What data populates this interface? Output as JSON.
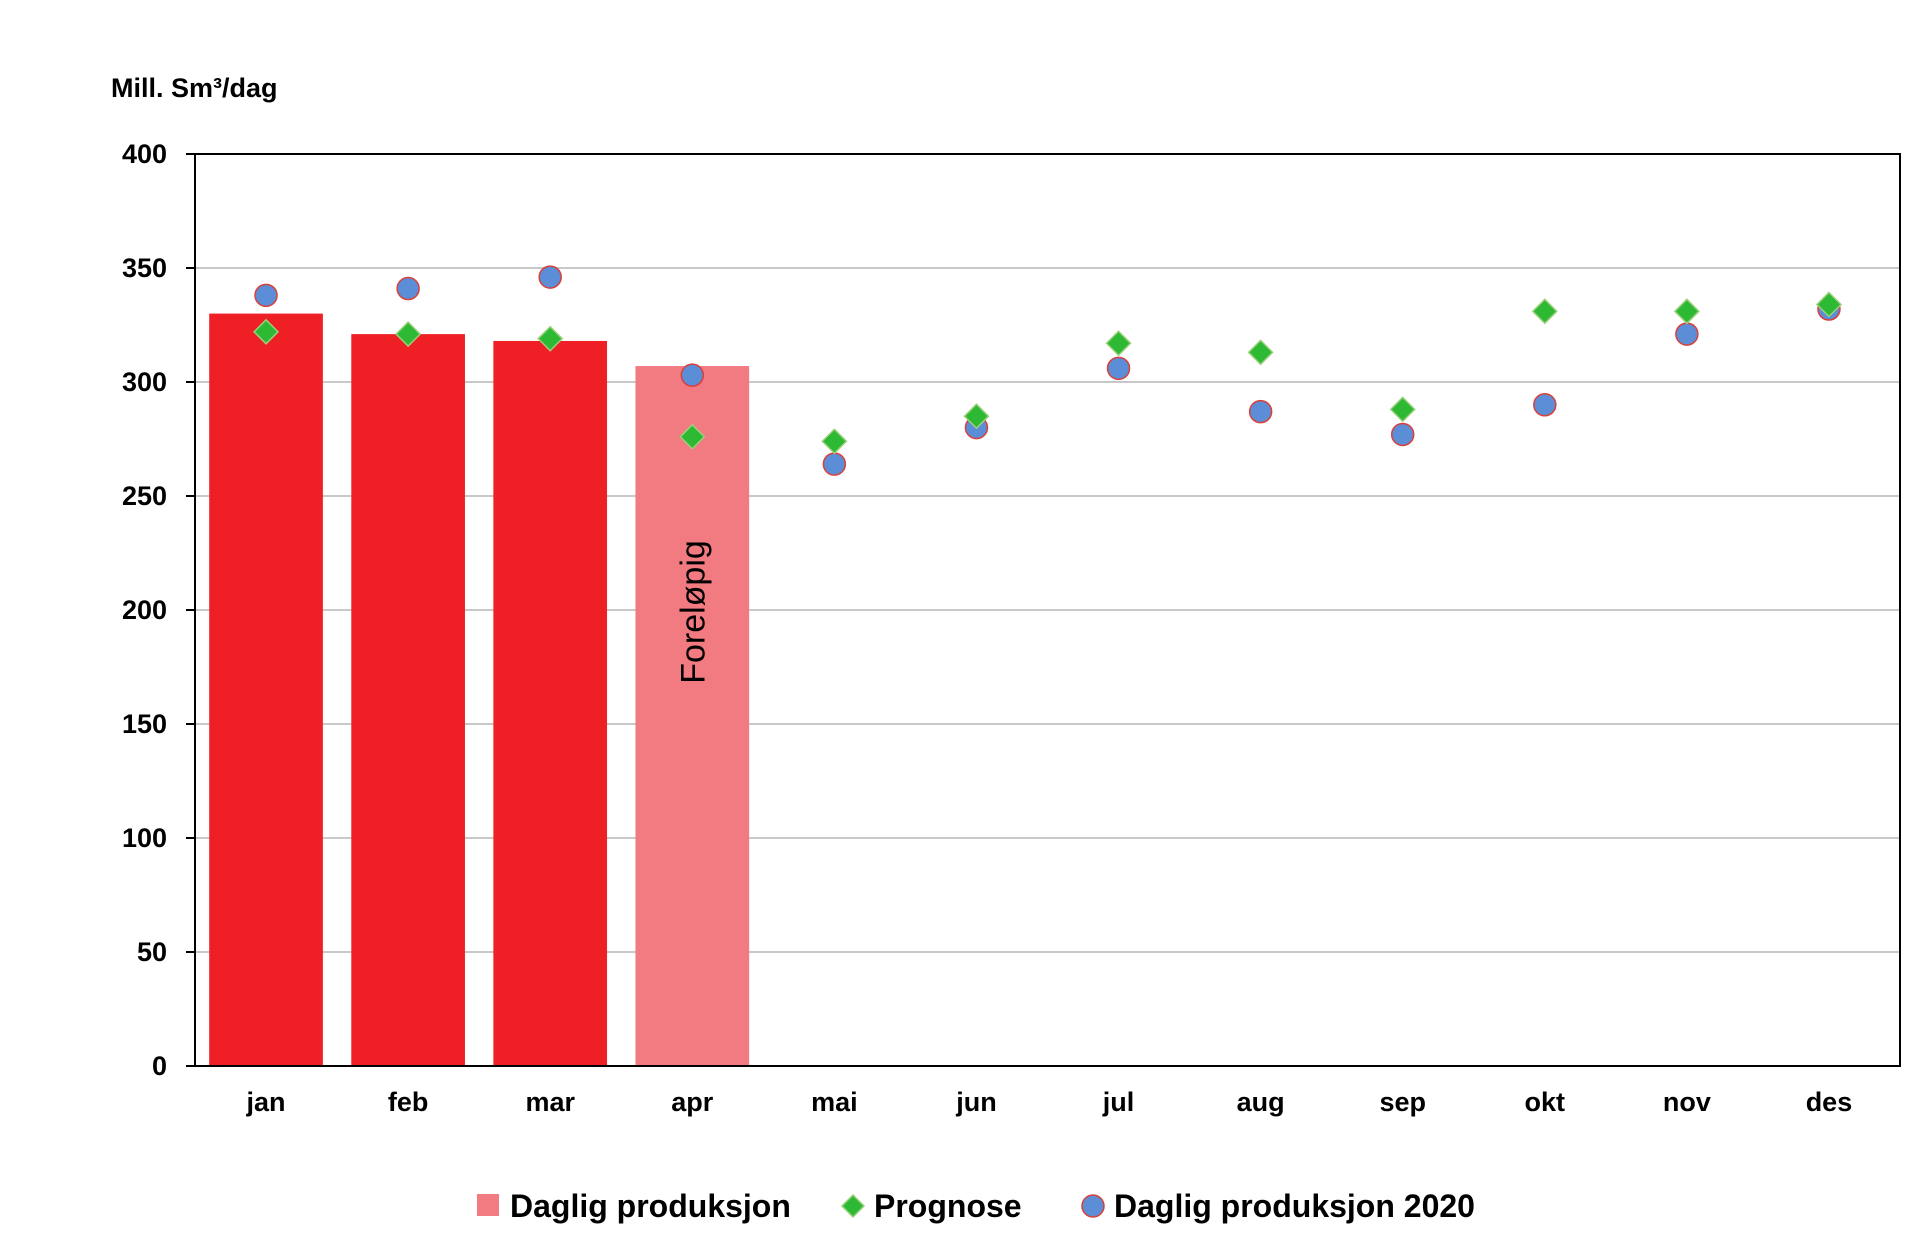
{
  "chart_data": {
    "type": "bar",
    "ylabel": "Mill. Sm³/dag",
    "ylim": [
      0,
      400
    ],
    "yticks": [
      0,
      50,
      100,
      150,
      200,
      250,
      300,
      350,
      400
    ],
    "grid": true,
    "categories": [
      "jan",
      "feb",
      "mar",
      "apr",
      "mai",
      "jun",
      "jul",
      "aug",
      "sep",
      "okt",
      "nov",
      "des"
    ],
    "series": [
      {
        "name": "Daglig produksjon",
        "type": "bar",
        "values": [
          330,
          321,
          318,
          307,
          null,
          null,
          null,
          null,
          null,
          null,
          null,
          null
        ],
        "colors": [
          "#ee1f25",
          "#ee1f25",
          "#ee1f25",
          "#f27b81"
        ],
        "color": "#f27b81"
      },
      {
        "name": "Prognose",
        "type": "scatter",
        "marker": "diamond",
        "color": "#2db934",
        "values": [
          322,
          321,
          319,
          276,
          274,
          285,
          317,
          313,
          288,
          331,
          331,
          334
        ]
      },
      {
        "name": "Daglig produksjon 2020",
        "type": "scatter",
        "marker": "circle",
        "color": "#5b8ed6",
        "edge_color": "#d9403a",
        "values": [
          338,
          341,
          346,
          303,
          264,
          280,
          306,
          287,
          277,
          290,
          321,
          332
        ]
      }
    ],
    "annotations": [
      {
        "category": "apr",
        "text": "Foreløpig",
        "rotation": -90
      }
    ],
    "legend_position": "bottom"
  }
}
